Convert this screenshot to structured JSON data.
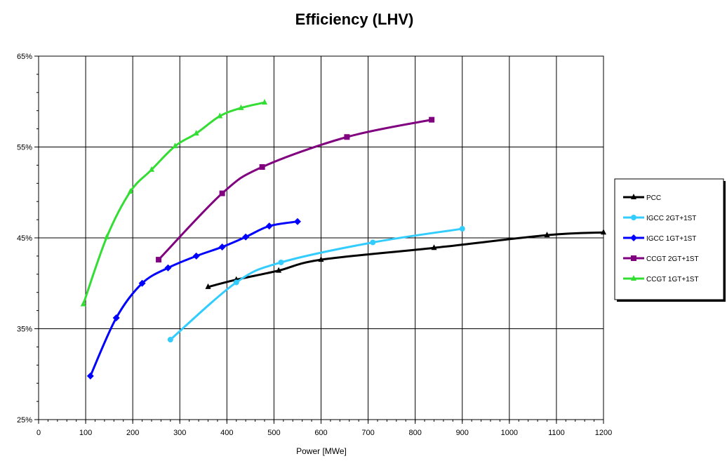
{
  "chart_data": {
    "type": "line",
    "title": "Efficiency (LHV)",
    "xlabel": "Power [MWe]",
    "ylabel": "",
    "xlim": [
      0,
      1200
    ],
    "ylim": [
      25,
      65
    ],
    "x_ticks": [
      0,
      100,
      200,
      300,
      400,
      500,
      600,
      700,
      800,
      900,
      1000,
      1100,
      1200
    ],
    "y_ticks": [
      25,
      35,
      45,
      55,
      65
    ],
    "y_tick_labels": [
      "25%",
      "35%",
      "45%",
      "55%",
      "65%"
    ],
    "grid": true,
    "legend_position": "right",
    "series": [
      {
        "name": "PCC",
        "color": "#000000",
        "marker": "triangle",
        "points": [
          [
            360,
            39.6
          ],
          [
            420,
            40.4
          ],
          [
            510,
            41.4
          ],
          [
            600,
            42.6
          ],
          [
            840,
            43.9
          ],
          [
            1080,
            45.3
          ],
          [
            1200,
            45.6
          ]
        ]
      },
      {
        "name": "IGCC 2GT+1ST",
        "color": "#33ccff",
        "marker": "circle",
        "points": [
          [
            280,
            33.8
          ],
          [
            420,
            40.1
          ],
          [
            515,
            42.3
          ],
          [
            710,
            44.5
          ],
          [
            900,
            46.0
          ]
        ]
      },
      {
        "name": "IGCC 1GT+1ST",
        "color": "#0000ff",
        "marker": "diamond",
        "points": [
          [
            110,
            29.8
          ],
          [
            165,
            36.2
          ],
          [
            220,
            40.0
          ],
          [
            275,
            41.7
          ],
          [
            335,
            43.0
          ],
          [
            390,
            44.0
          ],
          [
            440,
            45.1
          ],
          [
            490,
            46.3
          ],
          [
            550,
            46.8
          ]
        ]
      },
      {
        "name": "CCGT 2GT+1ST",
        "color": "#800080",
        "marker": "square",
        "points": [
          [
            255,
            42.6
          ],
          [
            390,
            49.9
          ],
          [
            475,
            52.8
          ],
          [
            655,
            56.1
          ],
          [
            835,
            58.0
          ]
        ]
      },
      {
        "name": "CCGT 1GT+1ST",
        "color": "#33dd33",
        "marker": "triangle",
        "points": [
          [
            95,
            37.7
          ],
          [
            145,
            45.1
          ],
          [
            195,
            50.1
          ],
          [
            240,
            52.5
          ],
          [
            290,
            55.1
          ],
          [
            335,
            56.5
          ],
          [
            385,
            58.4
          ],
          [
            430,
            59.3
          ],
          [
            480,
            59.9
          ]
        ]
      }
    ]
  }
}
